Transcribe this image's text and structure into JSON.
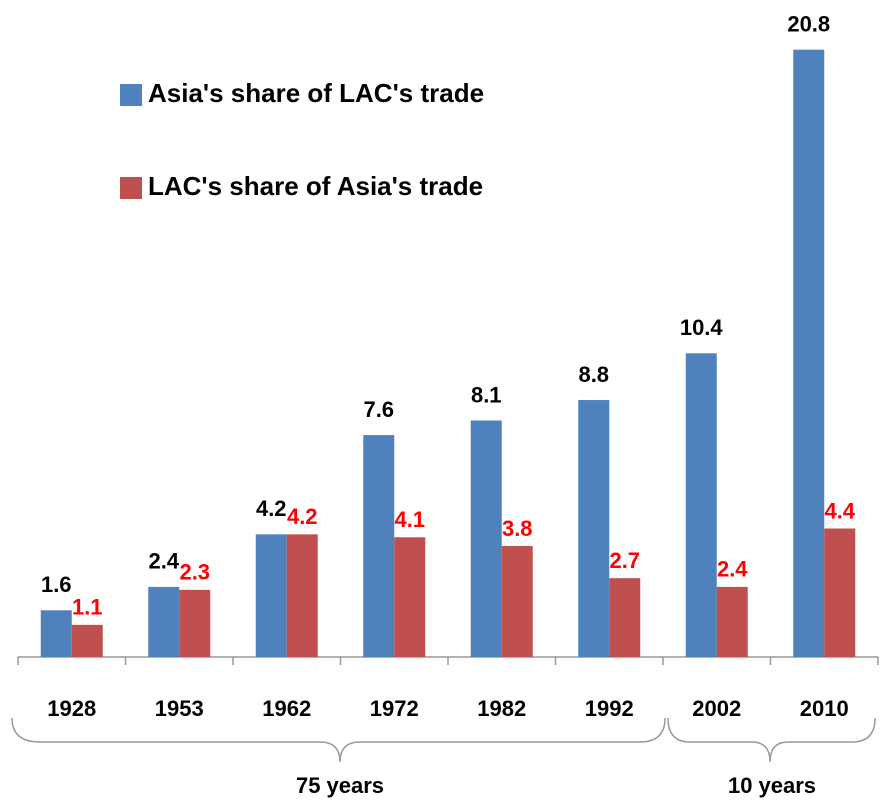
{
  "chart_data": {
    "type": "bar",
    "categories": [
      "1928",
      "1953",
      "1962",
      "1972",
      "1982",
      "1992",
      "2002",
      "2010"
    ],
    "series": [
      {
        "name": "Asia's share of LAC's trade",
        "color": "#4f81bd",
        "label_color": "#000000",
        "values": [
          1.6,
          2.4,
          4.2,
          7.6,
          8.1,
          8.8,
          10.4,
          20.8
        ]
      },
      {
        "name": "LAC's share of Asia's trade",
        "color": "#c0504d",
        "label_color": "#ff0000",
        "values": [
          1.1,
          2.3,
          4.2,
          4.1,
          3.8,
          2.7,
          2.4,
          4.4
        ]
      }
    ],
    "ylim": [
      0,
      22.5
    ],
    "annotations": [
      "75 years",
      "10 years"
    ]
  }
}
